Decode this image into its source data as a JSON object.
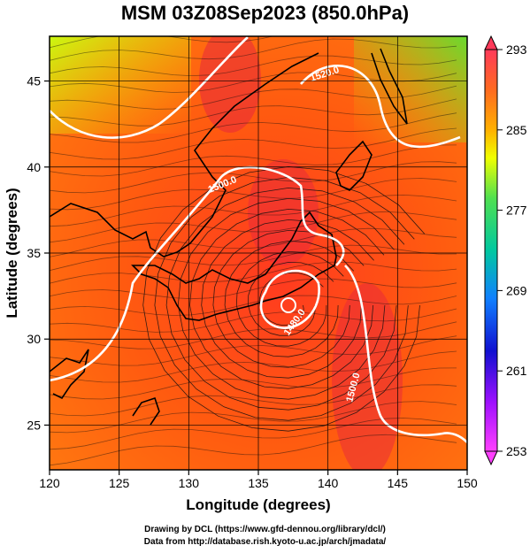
{
  "title": "MSM 03Z08Sep2023 (850.0hPa)",
  "x_axis": {
    "label": "Longitude (degrees)",
    "ticks": [
      120,
      125,
      130,
      135,
      140,
      145,
      150
    ]
  },
  "y_axis": {
    "label": "Latitude  (degrees)",
    "ticks": [
      25,
      30,
      35,
      40,
      45
    ]
  },
  "colorbar": {
    "ticks": [
      293,
      285,
      277,
      269,
      261,
      253
    ],
    "colors": [
      "#ff3a5a",
      "#ff6a20",
      "#ffb000",
      "#f0ff00",
      "#50e050",
      "#00c8a0",
      "#1080ff",
      "#1010d0",
      "#a010ff",
      "#ff40ff"
    ]
  },
  "contours": [
    {
      "label": "1520.0"
    },
    {
      "label": "1500.0"
    },
    {
      "label": "1480.0"
    },
    {
      "label": "1500.0"
    }
  ],
  "credits": {
    "line1": "Drawing by DCL (https://www.gfd-dennou.org/library/dcl/)",
    "line2": "Data from http://database.rish.kyoto-u.ac.jp/arch/jmadata/"
  }
}
